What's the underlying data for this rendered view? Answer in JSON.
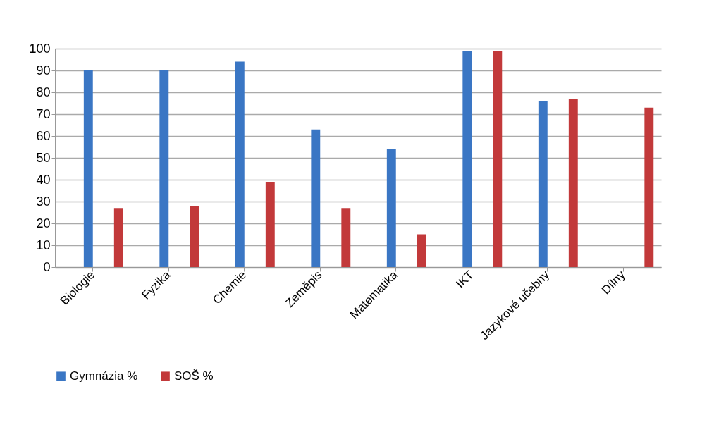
{
  "chart_data": {
    "type": "bar",
    "categories": [
      "Biologie",
      "Fyzika",
      "Chemie",
      "Zeměpis",
      "Matematika",
      "IKT",
      "Jazykové učebny",
      "Dílny"
    ],
    "series": [
      {
        "name": "Gymnázia %",
        "color": "#3a76c4",
        "values": [
          90,
          90,
          94,
          63,
          54,
          99,
          76,
          0
        ]
      },
      {
        "name": "SOŠ %",
        "color": "#c2393a",
        "values": [
          27,
          28,
          39,
          27,
          15,
          99,
          77,
          73
        ]
      }
    ],
    "ylim": [
      0,
      100
    ],
    "yticks": [
      0,
      10,
      20,
      30,
      40,
      50,
      60,
      70,
      80,
      90,
      100
    ],
    "grid": "y",
    "legend": "bottom"
  }
}
